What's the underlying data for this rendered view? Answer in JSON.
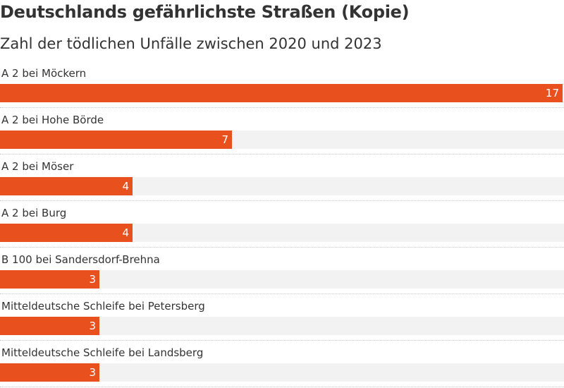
{
  "colors": {
    "bar": "#e8501e",
    "track": "#f2f2f2",
    "text": "#333333",
    "value_text": "#ffffff"
  },
  "chart_data": {
    "type": "bar",
    "orientation": "horizontal",
    "title": "Deutschlands gefährlichste Straßen (Kopie)",
    "subtitle": "Zahl der tödlichen Unfälle zwischen 2020 und 2023",
    "categories": [
      "A 2 bei Möckern",
      "A 2 bei Hohe Börde",
      "A 2 bei Möser",
      "A 2 bei Burg",
      "B 100 bei Sandersdorf-Brehna",
      "Mitteldeutsche Schleife bei Petersberg",
      "Mitteldeutsche Schleife bei Landsberg"
    ],
    "values": [
      17,
      7,
      4,
      4,
      3,
      3,
      3
    ],
    "xlim": [
      0,
      17
    ],
    "grid": false,
    "legend": "none"
  }
}
